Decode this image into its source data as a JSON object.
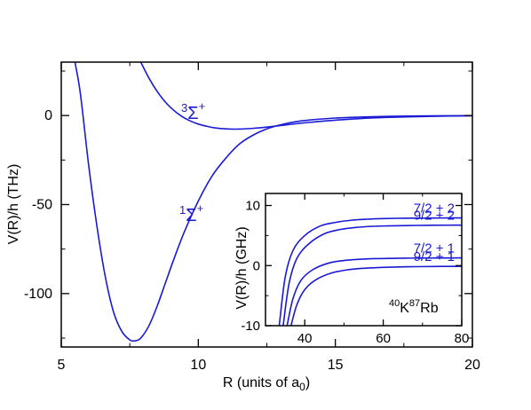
{
  "chart_data": [
    {
      "type": "line",
      "title": "",
      "xlabel": {
        "base": "R (units of a",
        "sub": "0",
        "tail": ")"
      },
      "ylabel": "V(R)/h (THz)",
      "xlim": [
        5,
        20
      ],
      "ylim": [
        -130,
        30
      ],
      "xticks": [
        5,
        10,
        15,
        20
      ],
      "yticks": [
        -100,
        -50,
        0
      ],
      "xtick_labels": [
        "5",
        "10",
        "15",
        "20"
      ],
      "ytick_labels": [
        "-100",
        "-50",
        "0"
      ],
      "grid": false,
      "line_color": "#1a1ad6",
      "series": [
        {
          "label_sup": "1",
          "label_main": "Σ",
          "label_main_sup": "+",
          "x": [
            5.5,
            5.7,
            6.0,
            6.3,
            6.6,
            6.9,
            7.2,
            7.5,
            7.7,
            7.9,
            8.2,
            8.5,
            8.8,
            9.1,
            9.5,
            10.0,
            10.5,
            11.0,
            11.5,
            12.0,
            12.5,
            13.0,
            13.5,
            14.0,
            15.0,
            16.0,
            17.0,
            18.0,
            19.0,
            20.0
          ],
          "y": [
            30,
            12,
            -28,
            -62,
            -90,
            -110,
            -121,
            -126,
            -126.5,
            -125,
            -118,
            -107,
            -94,
            -81,
            -65,
            -48,
            -34,
            -24,
            -16,
            -11,
            -7.5,
            -5.2,
            -3.6,
            -2.6,
            -1.4,
            -0.8,
            -0.45,
            -0.25,
            -0.13,
            -0.07
          ]
        },
        {
          "label_sup": "3",
          "label_main": "Σ",
          "label_main_sup": "+",
          "x": [
            7.9,
            8.2,
            8.5,
            8.8,
            9.1,
            9.4,
            9.7,
            10.0,
            10.3,
            10.6,
            11.0,
            11.5,
            12.0,
            12.5,
            13.0,
            14.0,
            15.0,
            16.0,
            17.0,
            18.0,
            19.0,
            20.0
          ],
          "y": [
            30,
            21,
            13.5,
            7.5,
            3.0,
            -0.5,
            -3.0,
            -4.8,
            -6.0,
            -6.9,
            -7.5,
            -7.6,
            -7.2,
            -6.5,
            -5.6,
            -3.9,
            -2.6,
            -1.6,
            -1.0,
            -0.6,
            -0.3,
            -0.15
          ]
        }
      ]
    },
    {
      "type": "line",
      "title": "",
      "xlabel": "",
      "ylabel": "V(R)/h (GHz)",
      "xlim": [
        30,
        80
      ],
      "ylim": [
        -10,
        12
      ],
      "xticks": [
        40,
        60,
        80
      ],
      "yticks": [
        -10,
        0,
        10
      ],
      "xtick_labels": [
        "40",
        "60",
        "80"
      ],
      "ytick_labels": [
        "-10",
        "0",
        "10"
      ],
      "grid": false,
      "annotation": {
        "sup1": "40",
        "el1": "K",
        "sup2": "87",
        "el2": "Rb"
      },
      "series": [
        {
          "name": "7/2 + 2",
          "x": [
            33.5,
            35,
            37,
            40,
            44,
            48,
            52,
            56,
            60,
            65,
            70,
            75,
            80
          ],
          "y": [
            -10,
            -2,
            2.5,
            5.0,
            6.6,
            7.2,
            7.55,
            7.72,
            7.82,
            7.88,
            7.9,
            7.92,
            7.93
          ]
        },
        {
          "name": "9/2 + 2",
          "x": [
            34.5,
            36,
            38,
            41,
            45,
            49,
            53,
            57,
            61,
            66,
            71,
            76,
            80
          ],
          "y": [
            -10,
            -3,
            1.2,
            3.6,
            5.3,
            6.0,
            6.35,
            6.52,
            6.6,
            6.66,
            6.7,
            6.72,
            6.73
          ]
        },
        {
          "name": "7/2 + 1",
          "x": [
            35.5,
            37,
            39,
            42,
            46,
            50,
            54,
            58,
            62,
            67,
            72,
            77,
            80
          ],
          "y": [
            -10,
            -5.5,
            -2.5,
            -0.7,
            0.4,
            0.85,
            1.05,
            1.15,
            1.2,
            1.24,
            1.26,
            1.27,
            1.28
          ]
        },
        {
          "name": "9/2 + 1",
          "x": [
            36.5,
            38,
            40,
            43,
            47,
            51,
            55,
            59,
            63,
            68,
            73,
            78,
            80
          ],
          "y": [
            -10,
            -6.5,
            -4.0,
            -2.3,
            -1.2,
            -0.7,
            -0.45,
            -0.32,
            -0.24,
            -0.18,
            -0.15,
            -0.13,
            -0.12
          ]
        }
      ]
    }
  ]
}
